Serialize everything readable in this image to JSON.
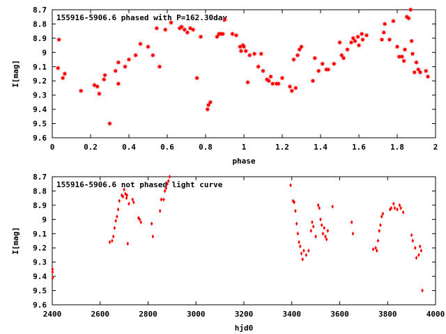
{
  "chart_data": [
    {
      "type": "scatter",
      "title": "155916-5906.6 phased with P=162.30day",
      "xlabel": "phase",
      "ylabel": "I[mag]",
      "xlim": [
        0,
        2
      ],
      "ylim": [
        9.6,
        8.7
      ],
      "y_inverted": true,
      "xticks": [
        0,
        0.2,
        0.4,
        0.6,
        0.8,
        1,
        1.2,
        1.4,
        1.6,
        1.8,
        2
      ],
      "xtick_labels": [
        "0",
        "0.2",
        "0.4",
        "0.6",
        "0.8",
        "1",
        "1.2",
        "1.4",
        "1.6",
        "1.8",
        "2"
      ],
      "yticks": [
        8.7,
        8.8,
        8.9,
        9,
        9.1,
        9.2,
        9.3,
        9.4,
        9.5,
        9.6
      ],
      "ytick_labels": [
        "8.7",
        "8.8",
        "8.9",
        "9",
        "9.1",
        "9.2",
        "9.3",
        "9.4",
        "9.5",
        "9.6"
      ],
      "marker_color": "#ff0000",
      "marker": "star",
      "grid": false,
      "points": [
        [
          0.03,
          9.11
        ],
        [
          0.035,
          8.91
        ],
        [
          0.055,
          9.18
        ],
        [
          0.065,
          9.15
        ],
        [
          0.15,
          9.27
        ],
        [
          0.22,
          9.23
        ],
        [
          0.235,
          9.24
        ],
        [
          0.245,
          9.29
        ],
        [
          0.27,
          9.19
        ],
        [
          0.275,
          9.16
        ],
        [
          0.3,
          9.5
        ],
        [
          0.33,
          9.13
        ],
        [
          0.345,
          9.22
        ],
        [
          0.345,
          9.07
        ],
        [
          0.38,
          9.1
        ],
        [
          0.4,
          9.05
        ],
        [
          0.435,
          9.02
        ],
        [
          0.46,
          8.94
        ],
        [
          0.5,
          8.96
        ],
        [
          0.525,
          9.02
        ],
        [
          0.545,
          8.83
        ],
        [
          0.56,
          9.1
        ],
        [
          0.59,
          8.84
        ],
        [
          0.62,
          8.79
        ],
        [
          0.665,
          8.83
        ],
        [
          0.675,
          8.82
        ],
        [
          0.69,
          8.84
        ],
        [
          0.705,
          8.86
        ],
        [
          0.72,
          8.83
        ],
        [
          0.735,
          8.84
        ],
        [
          0.755,
          9.18
        ],
        [
          0.775,
          8.89
        ],
        [
          0.81,
          9.4
        ],
        [
          0.815,
          9.37
        ],
        [
          0.825,
          9.35
        ],
        [
          0.86,
          8.89
        ],
        [
          0.87,
          8.87
        ],
        [
          0.88,
          8.87
        ],
        [
          0.89,
          8.87
        ],
        [
          0.9,
          8.77
        ],
        [
          0.94,
          8.87
        ],
        [
          0.96,
          8.88
        ],
        [
          0.98,
          8.96
        ],
        [
          0.985,
          8.99
        ],
        [
          0.995,
          8.95
        ],
        [
          1.0,
          8.96
        ],
        [
          1.01,
          8.99
        ],
        [
          1.02,
          9.21
        ],
        [
          1.03,
          9.02
        ],
        [
          1.055,
          9.01
        ],
        [
          1.075,
          9.1
        ],
        [
          1.09,
          9.01
        ],
        [
          1.1,
          9.13
        ],
        [
          1.12,
          9.19
        ],
        [
          1.13,
          9.2
        ],
        [
          1.14,
          9.17
        ],
        [
          1.15,
          9.22
        ],
        [
          1.17,
          9.22
        ],
        [
          1.18,
          9.22
        ],
        [
          1.2,
          9.18
        ],
        [
          1.24,
          9.24
        ],
        [
          1.25,
          9.27
        ],
        [
          1.26,
          9.05
        ],
        [
          1.27,
          9.25
        ],
        [
          1.28,
          9.02
        ],
        [
          1.29,
          8.98
        ],
        [
          1.3,
          8.96
        ],
        [
          1.36,
          9.2
        ],
        [
          1.37,
          9.04
        ],
        [
          1.39,
          9.13
        ],
        [
          1.41,
          9.08
        ],
        [
          1.43,
          9.12
        ],
        [
          1.44,
          9.12
        ],
        [
          1.47,
          9.08
        ],
        [
          1.5,
          8.93
        ],
        [
          1.51,
          9.02
        ],
        [
          1.52,
          9.04
        ],
        [
          1.54,
          8.98
        ],
        [
          1.56,
          8.93
        ],
        [
          1.57,
          8.9
        ],
        [
          1.58,
          8.92
        ],
        [
          1.595,
          8.89
        ],
        [
          1.6,
          8.95
        ],
        [
          1.615,
          8.87
        ],
        [
          1.62,
          8.91
        ],
        [
          1.64,
          8.88
        ],
        [
          1.72,
          8.91
        ],
        [
          1.73,
          8.86
        ],
        [
          1.735,
          8.8
        ],
        [
          1.76,
          8.91
        ],
        [
          1.78,
          8.78
        ],
        [
          1.8,
          8.96
        ],
        [
          1.81,
          9.03
        ],
        [
          1.825,
          9.03
        ],
        [
          1.835,
          9.06
        ],
        [
          1.84,
          8.98
        ],
        [
          1.85,
          8.75
        ],
        [
          1.86,
          8.76
        ],
        [
          1.87,
          8.7
        ],
        [
          1.875,
          8.92
        ],
        [
          1.88,
          9.01
        ],
        [
          1.89,
          9.14
        ],
        [
          1.9,
          9.07
        ],
        [
          1.91,
          9.12
        ],
        [
          1.92,
          9.14
        ],
        [
          1.95,
          9.13
        ],
        [
          1.96,
          9.17
        ]
      ]
    },
    {
      "type": "scatter",
      "title": "155916-5906.6 not phased light curve",
      "xlabel": "hjd0",
      "ylabel": "I[mag]",
      "xlim": [
        2400,
        4000
      ],
      "ylim": [
        9.6,
        8.7
      ],
      "y_inverted": true,
      "xticks": [
        2400,
        2600,
        2800,
        3000,
        3200,
        3400,
        3600,
        3800,
        4000
      ],
      "xtick_labels": [
        "2400",
        "2600",
        "2800",
        "3000",
        "3200",
        "3400",
        "3600",
        "3800",
        "4000"
      ],
      "yticks": [
        8.7,
        8.8,
        8.9,
        9,
        9.1,
        9.2,
        9.3,
        9.4,
        9.5,
        9.6
      ],
      "ytick_labels": [
        "8.7",
        "8.8",
        "8.9",
        "9",
        "9.1",
        "9.2",
        "9.3",
        "9.4",
        "9.5",
        "9.6"
      ],
      "marker_color": "#ff0000",
      "marker": "diamond",
      "grid": false,
      "points": [
        [
          2401,
          9.35
        ],
        [
          2401,
          9.37
        ],
        [
          2402,
          9.41
        ],
        [
          2640,
          9.16
        ],
        [
          2650,
          9.15
        ],
        [
          2655,
          9.12
        ],
        [
          2660,
          9.06
        ],
        [
          2665,
          9.01
        ],
        [
          2670,
          8.98
        ],
        [
          2675,
          8.93
        ],
        [
          2680,
          8.87
        ],
        [
          2690,
          8.83
        ],
        [
          2695,
          8.84
        ],
        [
          2700,
          8.79
        ],
        [
          2705,
          8.82
        ],
        [
          2710,
          8.85
        ],
        [
          2712,
          8.83
        ],
        [
          2715,
          9.17
        ],
        [
          2720,
          8.89
        ],
        [
          2735,
          8.86
        ],
        [
          2740,
          8.88
        ],
        [
          2760,
          8.99
        ],
        [
          2765,
          9.0
        ],
        [
          2770,
          9.02
        ],
        [
          2815,
          9.03
        ],
        [
          2820,
          9.12
        ],
        [
          2850,
          8.94
        ],
        [
          2855,
          8.86
        ],
        [
          2865,
          8.86
        ],
        [
          2870,
          8.8
        ],
        [
          2875,
          8.78
        ],
        [
          2880,
          8.75
        ],
        [
          2885,
          8.73
        ],
        [
          2890,
          8.7
        ],
        [
          3395,
          8.76
        ],
        [
          3405,
          8.87
        ],
        [
          3410,
          8.88
        ],
        [
          3415,
          8.94
        ],
        [
          3420,
          9.03
        ],
        [
          3425,
          9.1
        ],
        [
          3430,
          9.16
        ],
        [
          3435,
          9.19
        ],
        [
          3440,
          9.24
        ],
        [
          3445,
          9.28
        ],
        [
          3450,
          9.22
        ],
        [
          3460,
          9.25
        ],
        [
          3470,
          9.22
        ],
        [
          3480,
          9.08
        ],
        [
          3485,
          9.02
        ],
        [
          3490,
          9.05
        ],
        [
          3500,
          9.12
        ],
        [
          3510,
          8.9
        ],
        [
          3515,
          8.92
        ],
        [
          3520,
          9.0
        ],
        [
          3525,
          9.04
        ],
        [
          3530,
          9.1
        ],
        [
          3535,
          9.06
        ],
        [
          3540,
          9.12
        ],
        [
          3545,
          9.14
        ],
        [
          3550,
          9.08
        ],
        [
          3570,
          8.91
        ],
        [
          3650,
          9.02
        ],
        [
          3655,
          9.1
        ],
        [
          3740,
          9.21
        ],
        [
          3750,
          9.2
        ],
        [
          3755,
          9.22
        ],
        [
          3760,
          9.15
        ],
        [
          3765,
          9.08
        ],
        [
          3770,
          9.04
        ],
        [
          3775,
          8.98
        ],
        [
          3780,
          8.96
        ],
        [
          3810,
          8.93
        ],
        [
          3815,
          8.92
        ],
        [
          3825,
          8.89
        ],
        [
          3830,
          8.92
        ],
        [
          3840,
          8.93
        ],
        [
          3850,
          8.9
        ],
        [
          3855,
          8.92
        ],
        [
          3865,
          8.95
        ],
        [
          3900,
          9.11
        ],
        [
          3905,
          9.15
        ],
        [
          3915,
          9.2
        ],
        [
          3920,
          9.27
        ],
        [
          3930,
          9.25
        ],
        [
          3935,
          9.19
        ],
        [
          3940,
          9.22
        ],
        [
          3945,
          9.5
        ]
      ]
    }
  ]
}
